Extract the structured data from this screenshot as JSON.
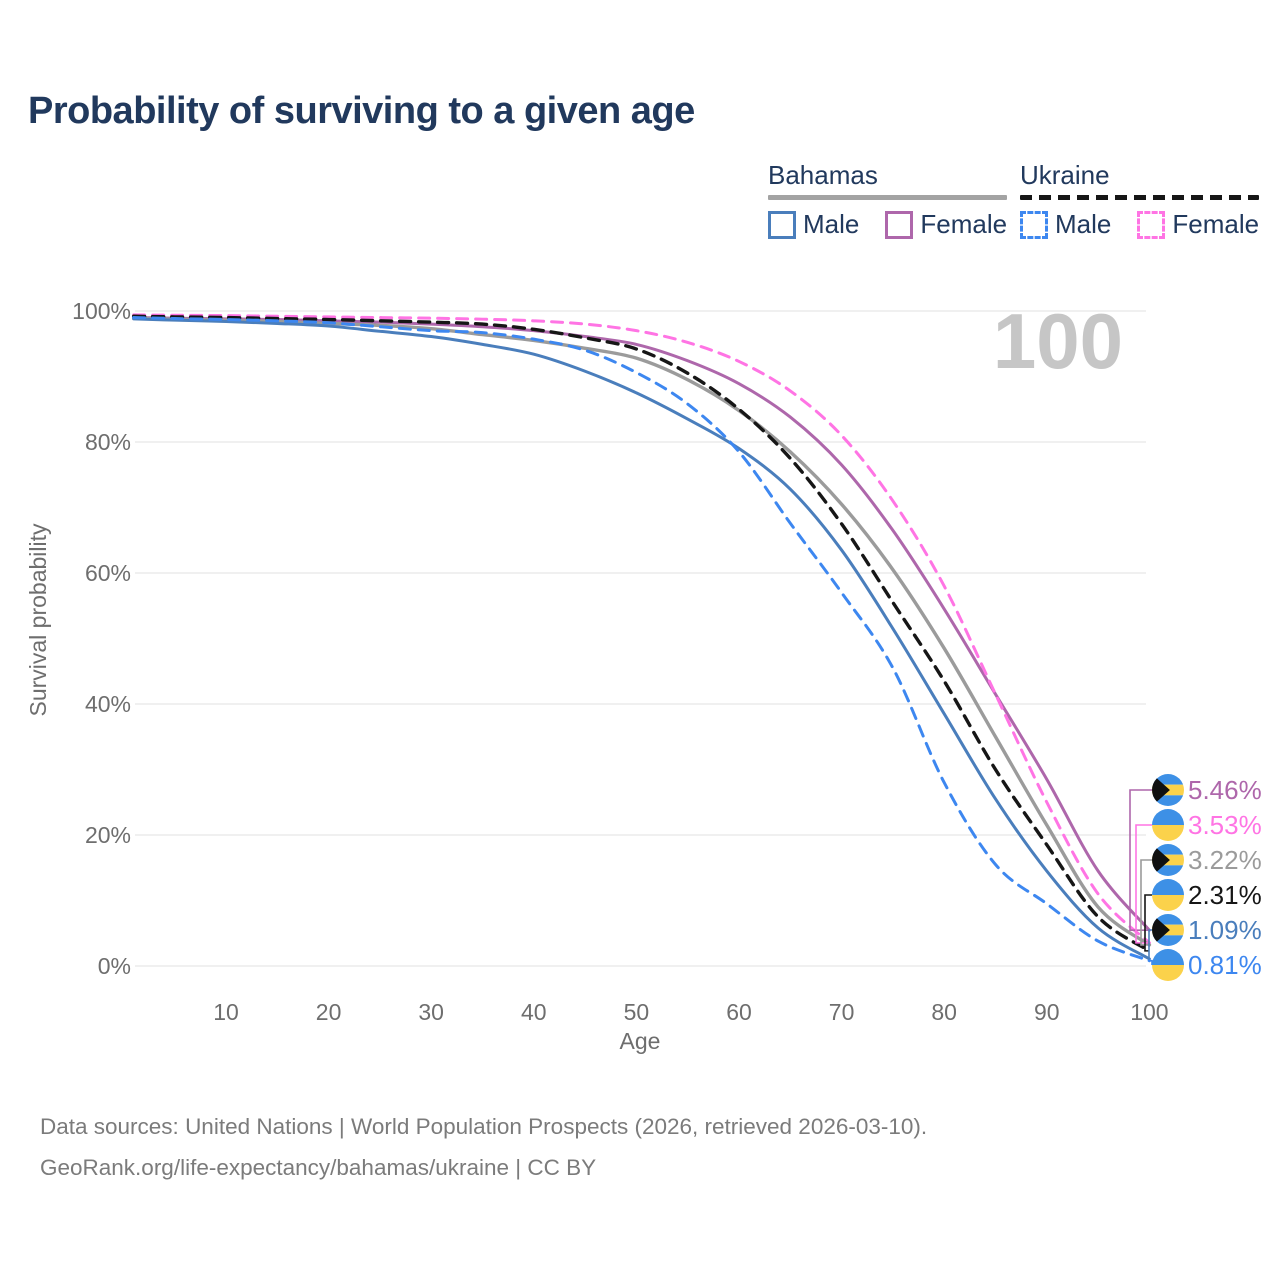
{
  "title": "Probability of surviving to a given age",
  "watermark_age": "100",
  "legend": {
    "groups": [
      {
        "label": "Bahamas",
        "line_style": "solid",
        "underline_color": "#a3a3a3",
        "items": [
          {
            "label": "Male",
            "color": "#4a7ebc",
            "dashed": false
          },
          {
            "label": "Female",
            "color": "#ae67ab",
            "dashed": false
          }
        ]
      },
      {
        "label": "Ukraine",
        "line_style": "dashed",
        "underline_color": "#161616",
        "items": [
          {
            "label": "Male",
            "color": "#3d87f0",
            "dashed": true
          },
          {
            "label": "Female",
            "color": "#ff74e4",
            "dashed": true
          }
        ]
      }
    ]
  },
  "chart_data": {
    "type": "line",
    "title": "Probability of surviving to a given age",
    "xlabel": "Age",
    "ylabel": "Survival probability",
    "xlim": [
      0,
      100
    ],
    "ylim": [
      0,
      100
    ],
    "x_ticks": [
      10,
      20,
      30,
      40,
      50,
      60,
      70,
      80,
      90,
      100
    ],
    "y_ticks": [
      {
        "value": 0,
        "label": "0%"
      },
      {
        "value": 20,
        "label": "20%"
      },
      {
        "value": 40,
        "label": "40%"
      },
      {
        "value": 60,
        "label": "60%"
      },
      {
        "value": 80,
        "label": "80%"
      },
      {
        "value": 100,
        "label": "100%"
      }
    ],
    "grid": true,
    "legend_position": "top-right",
    "hover_age": 100,
    "series": [
      {
        "name": "Bahamas Female",
        "country": "Bahamas",
        "sex": "Female",
        "color": "#ae67ab",
        "dashed": false,
        "width": 3,
        "flag": "bahamas",
        "end_label": "5.46%",
        "x": [
          1,
          5,
          10,
          15,
          20,
          25,
          30,
          35,
          40,
          45,
          50,
          55,
          60,
          65,
          70,
          75,
          80,
          85,
          90,
          95,
          100
        ],
        "y": [
          99.0,
          98.9,
          98.8,
          98.7,
          98.5,
          98.3,
          98.0,
          97.6,
          97.0,
          96.1,
          94.9,
          92.4,
          88.9,
          83.8,
          76.5,
          66.5,
          54.5,
          41.5,
          28.5,
          14.5,
          5.46
        ]
      },
      {
        "name": "Ukraine Female",
        "country": "Ukraine",
        "sex": "Female",
        "color": "#ff74e4",
        "dashed": true,
        "width": 3,
        "flag": "ukraine",
        "end_label": "3.53%",
        "x": [
          1,
          5,
          10,
          15,
          20,
          25,
          30,
          35,
          40,
          45,
          50,
          55,
          60,
          65,
          70,
          75,
          80,
          85,
          90,
          95,
          100
        ],
        "y": [
          99.4,
          99.35,
          99.3,
          99.2,
          99.1,
          99.0,
          98.9,
          98.75,
          98.5,
          98.0,
          97.0,
          95.2,
          92.3,
          87.8,
          81.0,
          71.0,
          58.0,
          41.5,
          25.0,
          11.0,
          3.53
        ]
      },
      {
        "name": "Bahamas",
        "country": "Bahamas",
        "sex": "Total",
        "color": "#9b9b9b",
        "dashed": false,
        "width": 3.4,
        "flag": "bahamas",
        "end_label": "3.22%",
        "x": [
          1,
          5,
          10,
          15,
          20,
          25,
          30,
          35,
          40,
          45,
          50,
          55,
          60,
          65,
          70,
          75,
          80,
          85,
          90,
          95,
          100
        ],
        "y": [
          98.9,
          98.75,
          98.6,
          98.4,
          98.1,
          97.8,
          97.3,
          96.4,
          95.5,
          94.3,
          92.8,
          89.5,
          84.8,
          78.5,
          70.5,
          60.5,
          48.5,
          35.0,
          21.5,
          9.0,
          3.22
        ]
      },
      {
        "name": "Ukraine",
        "country": "Ukraine",
        "sex": "Total",
        "color": "#161616",
        "dashed": true,
        "width": 3.4,
        "flag": "ukraine",
        "end_label": "2.31%",
        "x": [
          1,
          5,
          10,
          15,
          20,
          25,
          30,
          35,
          40,
          45,
          50,
          55,
          60,
          65,
          70,
          75,
          80,
          85,
          90,
          95,
          100
        ],
        "y": [
          99.2,
          99.1,
          99.0,
          98.85,
          98.7,
          98.5,
          98.3,
          98.0,
          97.2,
          95.9,
          94.2,
          90.5,
          85.0,
          77.5,
          67.5,
          55.5,
          43.5,
          30.0,
          18.5,
          7.5,
          2.31
        ]
      },
      {
        "name": "Bahamas Male",
        "country": "Bahamas",
        "sex": "Male",
        "color": "#4a7ebc",
        "dashed": false,
        "width": 3,
        "flag": "bahamas",
        "end_label": "1.09%",
        "x": [
          1,
          5,
          10,
          15,
          20,
          25,
          30,
          35,
          40,
          45,
          50,
          55,
          60,
          65,
          70,
          75,
          80,
          85,
          90,
          95,
          100
        ],
        "y": [
          98.8,
          98.6,
          98.4,
          98.1,
          97.7,
          96.9,
          96.1,
          94.9,
          93.4,
          90.8,
          87.5,
          83.5,
          79.0,
          72.8,
          63.5,
          51.5,
          38.5,
          25.5,
          14.5,
          5.8,
          1.09
        ]
      },
      {
        "name": "Ukraine Male",
        "country": "Ukraine",
        "sex": "Male",
        "color": "#3d87f0",
        "dashed": true,
        "width": 3,
        "flag": "ukraine",
        "end_label": "0.81%",
        "x": [
          1,
          5,
          10,
          15,
          20,
          25,
          30,
          35,
          40,
          45,
          50,
          55,
          60,
          65,
          70,
          75,
          80,
          85,
          90,
          95,
          100
        ],
        "y": [
          99.0,
          98.85,
          98.7,
          98.5,
          98.2,
          97.6,
          97.0,
          96.7,
          95.7,
          94.0,
          90.6,
          85.8,
          78.5,
          67.6,
          57.0,
          45.5,
          28.0,
          15.5,
          9.5,
          3.8,
          0.81
        ]
      }
    ]
  },
  "flag_colors": {
    "blue": "#3d90e6",
    "yellow": "#fbd24b",
    "black": "#101010"
  },
  "footer": {
    "line1": "Data sources: United Nations | World Population Prospects (2026, retrieved 2026-03-10).",
    "line2": "GeoRank.org/life-expectancy/bahamas/ukraine | CC BY"
  }
}
